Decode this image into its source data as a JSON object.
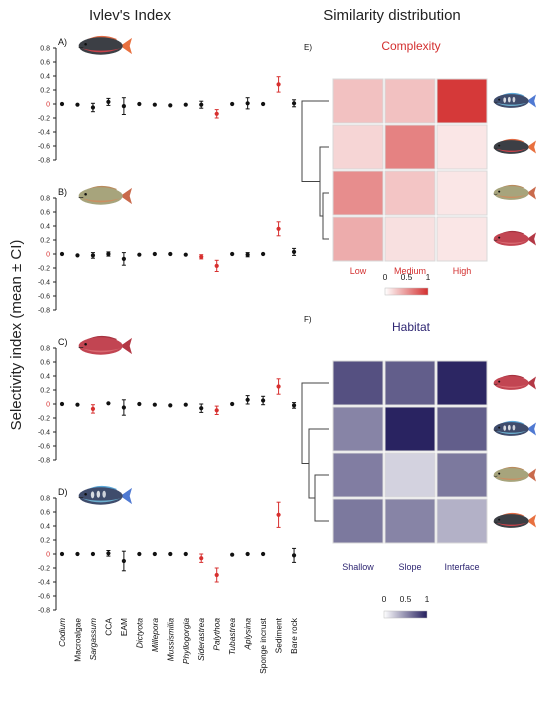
{
  "titles": {
    "left": "Ivlev's Index",
    "right": "Similarity distribution"
  },
  "y_axis_label": "Selectivity index (mean ± CI)",
  "categories": [
    "Codium",
    "Macroalgae",
    "Sargassum",
    "CCA",
    "EAM",
    "Dictyota",
    "Millepora",
    "Mussismilia",
    "Phyllogorgia",
    "Siderastrea",
    "Palythoa",
    "Tubastrea",
    "Aplysina",
    "Sponge incrust",
    "Sediment",
    "Bare rock"
  ],
  "italic_categories": [
    "Codium",
    "Sargassum",
    "Dictyota",
    "Millepora",
    "Mussismilia",
    "Phyllogorgia",
    "Siderastrea",
    "Palythoa",
    "Tubastrea",
    "Aplysina"
  ],
  "colors": {
    "significant": "#d7302f",
    "neutral": "#111111",
    "zero_tick": "#d7302f",
    "complexity_title": "#d32f2f",
    "habitat_title": "#2e2672"
  },
  "chart_data": [
    {
      "type": "scatter",
      "panel": "A)",
      "fish": "fish-a",
      "ylim": [
        -0.8,
        0.8
      ],
      "yticks": [
        "0.8",
        "0.6",
        "0.4",
        "0.2",
        "0",
        "-0.2",
        "-0.4",
        "-0.6",
        "-0.8"
      ],
      "means": [
        0,
        -0.01,
        -0.05,
        0.03,
        -0.03,
        0,
        -0.01,
        -0.02,
        -0.01,
        -0.01,
        -0.14,
        0,
        0.01,
        0,
        0.28,
        0.01
      ],
      "ci": [
        0.01,
        0.01,
        0.06,
        0.05,
        0.12,
        0.01,
        0.02,
        0.02,
        0.02,
        0.05,
        0.06,
        0.02,
        0.08,
        0.02,
        0.11,
        0.05
      ],
      "significant": [
        false,
        false,
        false,
        false,
        false,
        false,
        false,
        false,
        false,
        false,
        true,
        false,
        false,
        false,
        true,
        false
      ]
    },
    {
      "type": "scatter",
      "panel": "B)",
      "fish": "fish-b",
      "ylim": [
        -0.8,
        0.8
      ],
      "yticks": [
        "0.8",
        "0.6",
        "0.4",
        "0.2",
        "0",
        "-0.2",
        "-0.4",
        "-0.6",
        "-0.8"
      ],
      "means": [
        0,
        -0.02,
        -0.02,
        0,
        -0.07,
        -0.01,
        0,
        0,
        -0.01,
        -0.04,
        -0.17,
        0,
        -0.01,
        0,
        0.36,
        0.03
      ],
      "ci": [
        0.01,
        0.02,
        0.04,
        0.03,
        0.09,
        0.01,
        0.01,
        0.01,
        0.02,
        0.03,
        0.08,
        0.02,
        0.03,
        0.02,
        0.1,
        0.05
      ],
      "significant": [
        false,
        false,
        false,
        false,
        false,
        false,
        false,
        false,
        false,
        true,
        true,
        false,
        false,
        false,
        true,
        false
      ]
    },
    {
      "type": "scatter",
      "panel": "C)",
      "fish": "fish-c",
      "ylim": [
        -0.8,
        0.8
      ],
      "yticks": [
        "0.8",
        "0.6",
        "0.4",
        "0.2",
        "0",
        "-0.2",
        "-0.4",
        "-0.6",
        "-0.8"
      ],
      "means": [
        0,
        -0.01,
        -0.07,
        0.01,
        -0.05,
        0,
        -0.01,
        -0.02,
        -0.01,
        -0.06,
        -0.09,
        0,
        0.06,
        0.05,
        0.25,
        -0.02
      ],
      "ci": [
        0.01,
        0.01,
        0.06,
        0.02,
        0.11,
        0.01,
        0.01,
        0.01,
        0.02,
        0.06,
        0.06,
        0.02,
        0.06,
        0.06,
        0.11,
        0.04
      ],
      "significant": [
        false,
        false,
        true,
        false,
        false,
        false,
        false,
        false,
        false,
        false,
        true,
        false,
        false,
        false,
        true,
        false
      ]
    },
    {
      "type": "scatter",
      "panel": "D)",
      "fish": "fish-d",
      "ylim": [
        -0.8,
        0.8
      ],
      "yticks": [
        "0.8",
        "0.6",
        "0.4",
        "0.2",
        "0",
        "-0.2",
        "-0.4",
        "-0.6",
        "-0.8"
      ],
      "means": [
        0,
        0,
        0,
        0.01,
        -0.1,
        0,
        0,
        0,
        0,
        -0.06,
        -0.3,
        -0.01,
        0,
        0,
        0.56,
        -0.02
      ],
      "ci": [
        0.01,
        0.01,
        0.01,
        0.04,
        0.14,
        0.01,
        0.01,
        0.01,
        0.01,
        0.06,
        0.1,
        0.02,
        0.02,
        0.02,
        0.18,
        0.1
      ],
      "significant": [
        false,
        false,
        false,
        false,
        false,
        false,
        false,
        false,
        false,
        true,
        true,
        false,
        false,
        false,
        true,
        false
      ]
    },
    {
      "type": "heatmap",
      "panel": "E)",
      "title": "Complexity",
      "columns": [
        "Low",
        "Medium",
        "High"
      ],
      "row_fish": [
        "fish-d",
        "fish-a",
        "fish-b",
        "fish-c"
      ],
      "values": [
        [
          0.3,
          0.3,
          0.95
        ],
        [
          0.2,
          0.6,
          0.12
        ],
        [
          0.55,
          0.28,
          0.12
        ],
        [
          0.4,
          0.15,
          0.12
        ]
      ],
      "colorbar": {
        "min_label": "0",
        "mid_label": "0.5",
        "max_label": "1",
        "color_low": "#ffffff",
        "color_high": "#d32f2f"
      }
    },
    {
      "type": "heatmap",
      "panel": "F)",
      "title": "Habitat",
      "columns": [
        "Shallow",
        "Slope",
        "Interface"
      ],
      "row_fish": [
        "fish-c",
        "fish-d",
        "fish-b",
        "fish-a"
      ],
      "values": [
        [
          0.78,
          0.72,
          0.97
        ],
        [
          0.55,
          0.98,
          0.72
        ],
        [
          0.58,
          0.2,
          0.6
        ],
        [
          0.6,
          0.55,
          0.35
        ]
      ],
      "colorbar": {
        "min_label": "0",
        "mid_label": "0.5",
        "max_label": "1",
        "color_low": "#ffffff",
        "color_high": "#251f5e"
      }
    }
  ]
}
